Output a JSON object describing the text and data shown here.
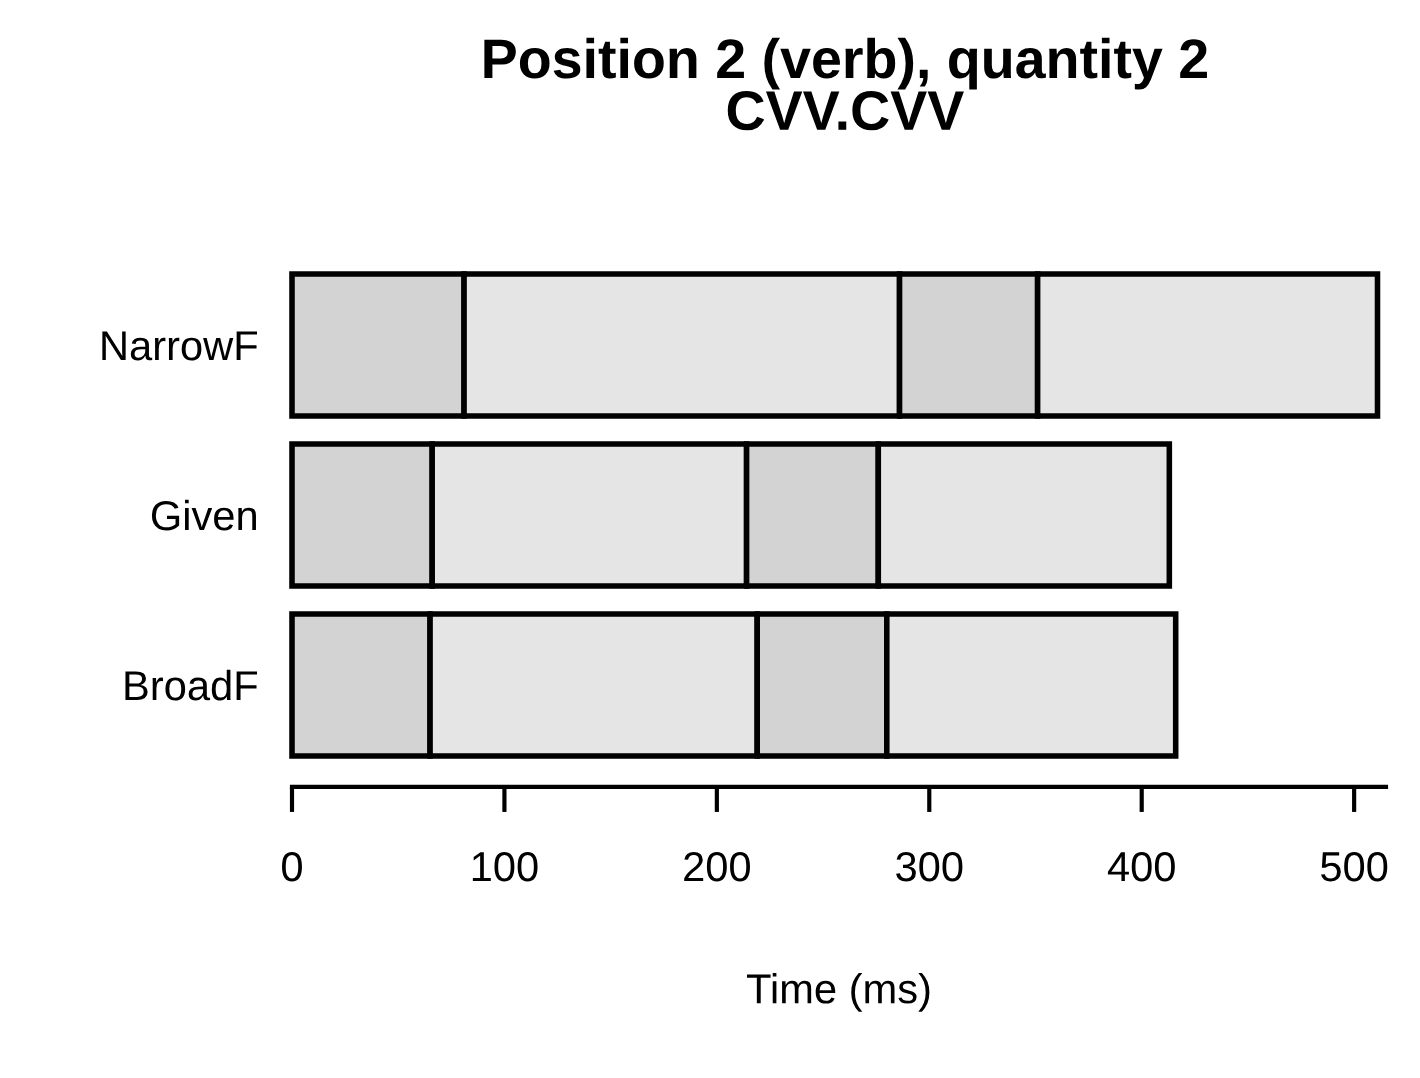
{
  "chart_data": {
    "type": "bar",
    "orientation": "horizontal",
    "stacked": true,
    "title": "Position 2 (verb), quantity 2\nCVV.CVV",
    "xlabel": "Time (ms)",
    "categories": [
      "NarrowF",
      "Given",
      "BroadF"
    ],
    "series": [
      {
        "color": "#d3d3d3",
        "values": [
          81,
          66,
          65
        ]
      },
      {
        "color": "#e5e5e5",
        "values": [
          205,
          148,
          154
        ]
      },
      {
        "color": "#d3d3d3",
        "values": [
          65,
          62,
          61
        ]
      },
      {
        "color": "#e5e5e5",
        "values": [
          160,
          137,
          136
        ]
      }
    ],
    "xlim": [
      0,
      515
    ],
    "xticks": [
      0,
      100,
      200,
      300,
      400,
      500
    ],
    "grid": false,
    "legend": false
  }
}
